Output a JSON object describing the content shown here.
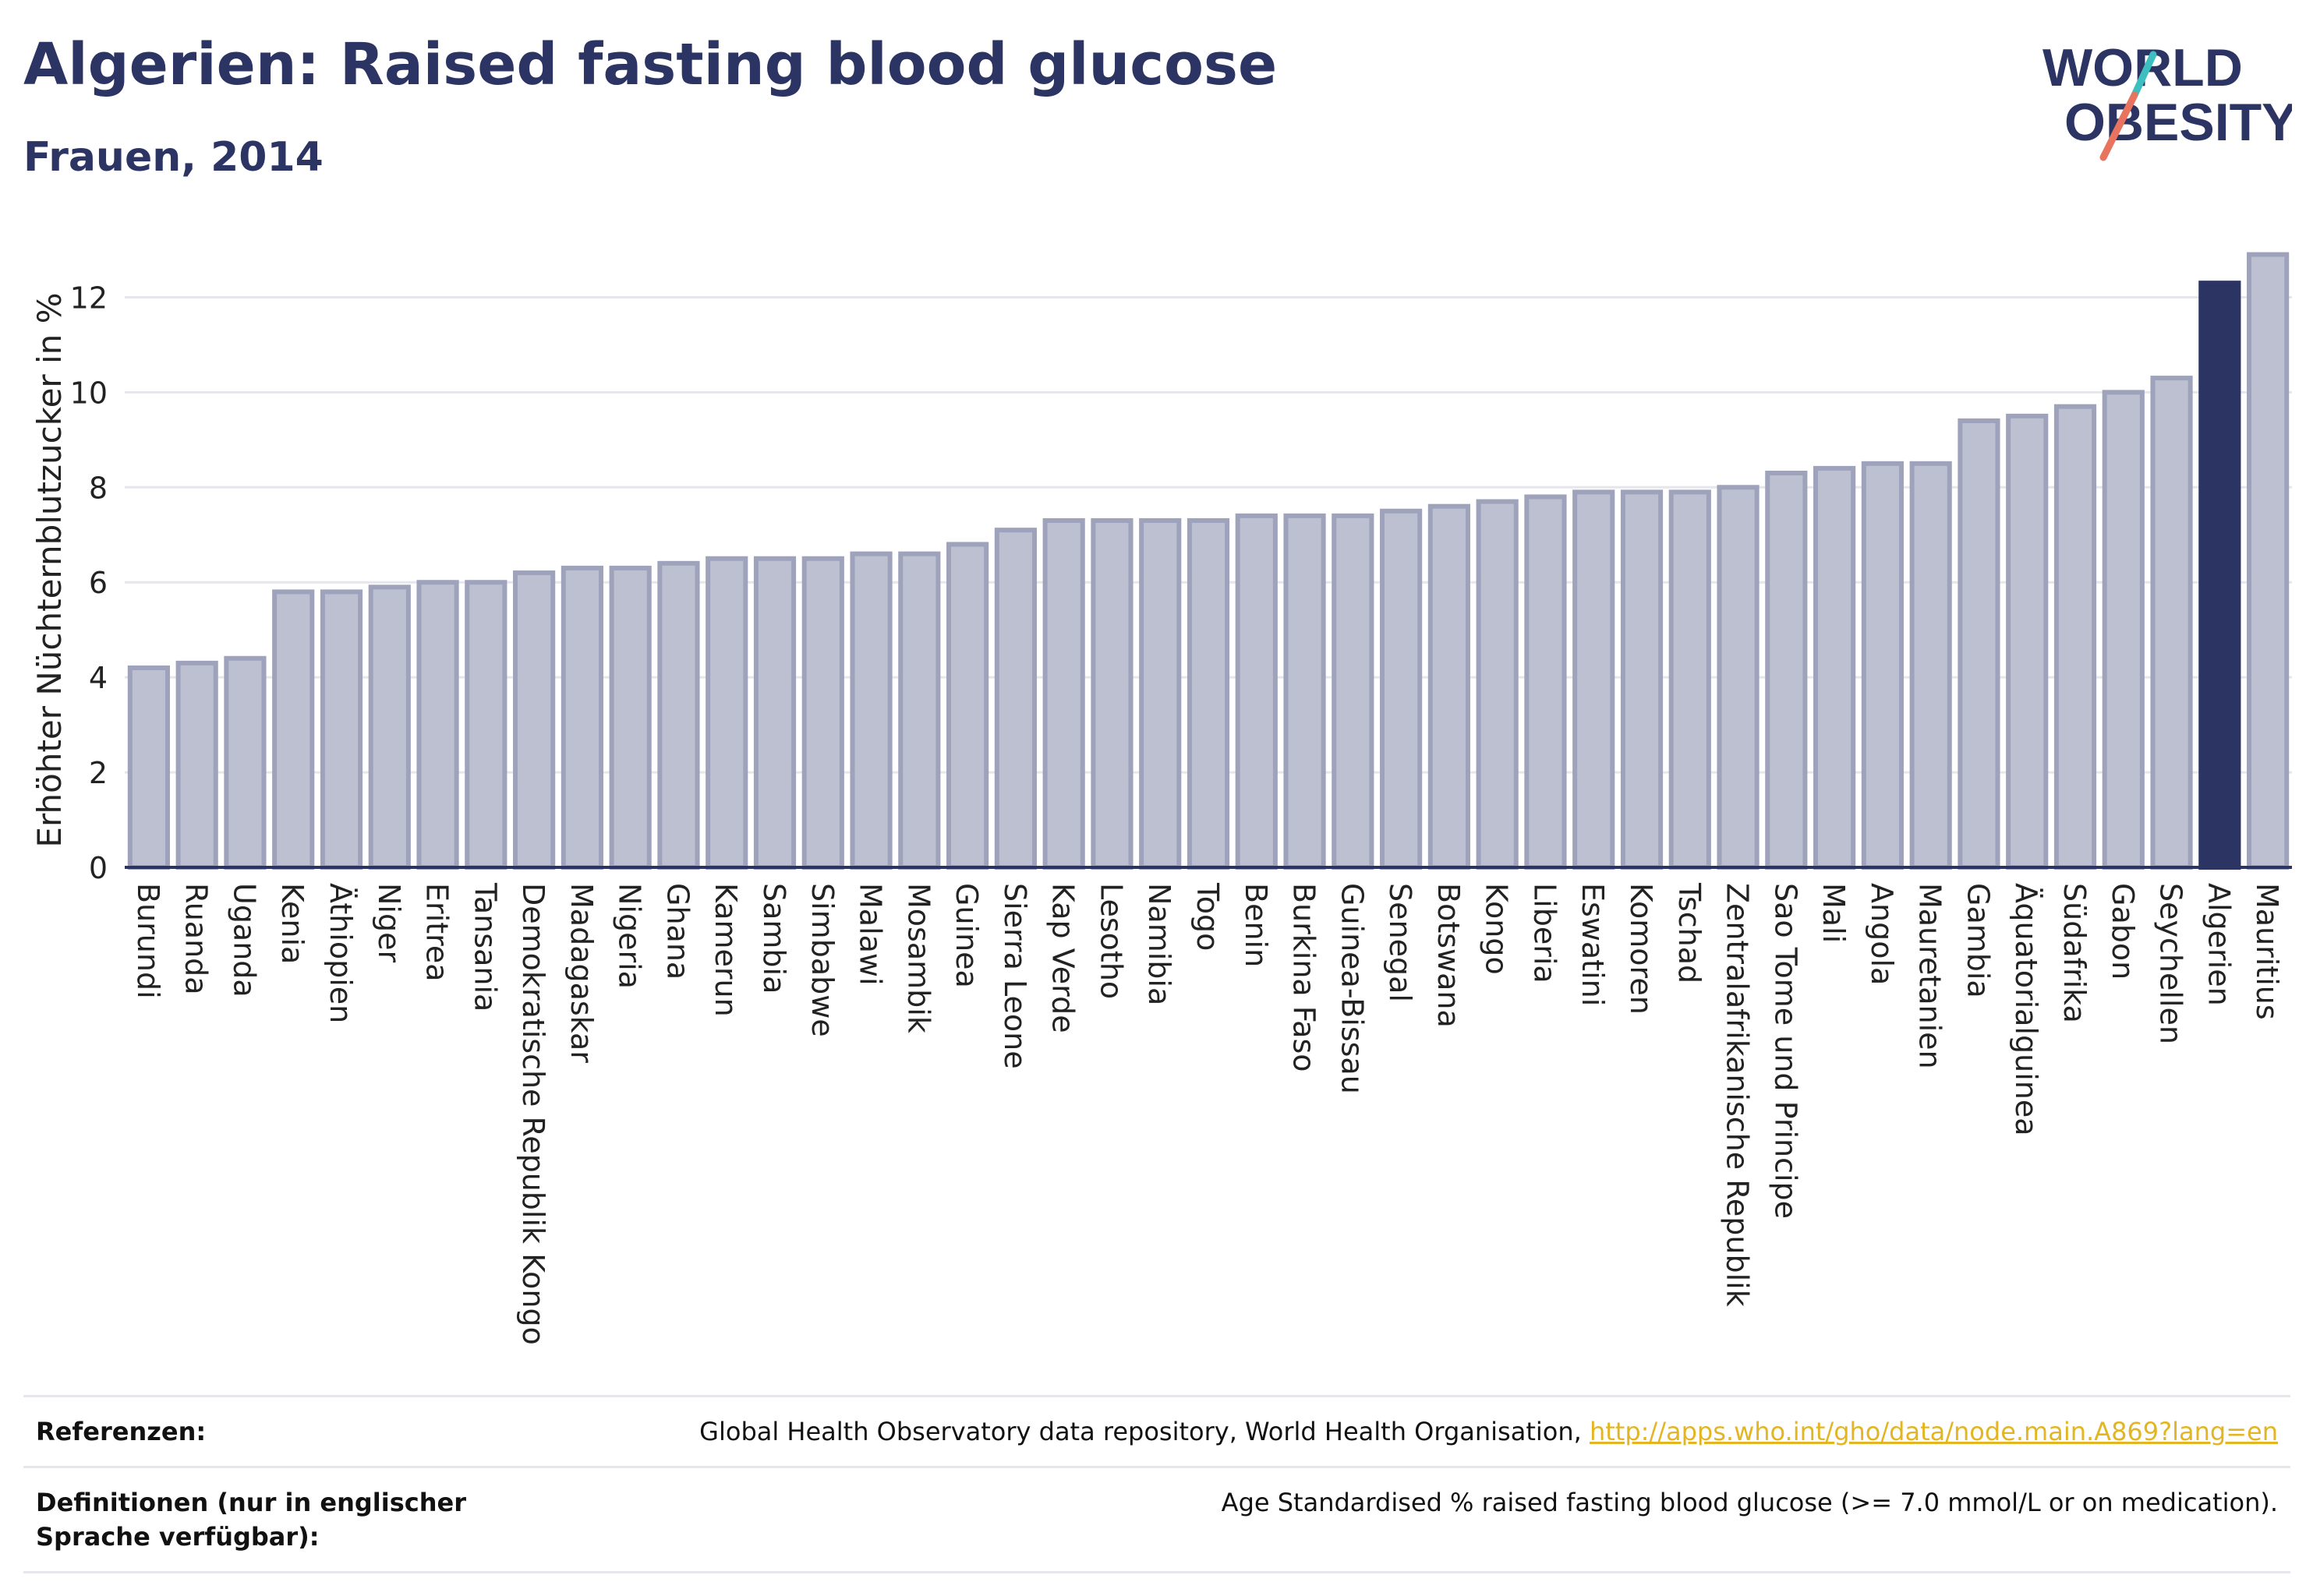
{
  "header": {
    "title": "Algerien: Raised fasting blood glucose",
    "subtitle": "Frauen, 2014"
  },
  "logo": {
    "line1": "WORLD",
    "line2": "OBESITY"
  },
  "colors": {
    "bar": "#bcc0d0",
    "bar_border": "#9ea3bb",
    "highlight": "#2b3463",
    "grid": "#e6e6ec",
    "axis": "#2b3463",
    "logo_text": "#2b3463",
    "logo_teal": "#3dbfc0",
    "logo_coral": "#e8735f"
  },
  "chart_data": {
    "type": "bar",
    "ylabel": "Erhöhter Nüchternblutzucker in %",
    "ylim": [
      0,
      13.5
    ],
    "yticks": [
      0,
      2,
      4,
      6,
      8,
      10,
      12
    ],
    "grid": true,
    "highlight": "Algerien",
    "categories": [
      "Burundi",
      "Ruanda",
      "Uganda",
      "Kenia",
      "Äthiopien",
      "Niger",
      "Eritrea",
      "Tansania",
      "Demokratische Republik Kongo",
      "Madagaskar",
      "Nigeria",
      "Ghana",
      "Kamerun",
      "Sambia",
      "Simbabwe",
      "Malawi",
      "Mosambik",
      "Guinea",
      "Sierra Leone",
      "Kap Verde",
      "Lesotho",
      "Namibia",
      "Togo",
      "Benin",
      "Burkina Faso",
      "Guinea-Bissau",
      "Senegal",
      "Botswana",
      "Kongo",
      "Liberia",
      "Eswatini",
      "Komoren",
      "Tschad",
      "Zentralafrikanische Republik",
      "Sao Tome und Principe",
      "Mali",
      "Angola",
      "Mauretanien",
      "Gambia",
      "Äquatorialguinea",
      "Südafrika",
      "Gabon",
      "Seychellen",
      "Algerien",
      "Mauritius"
    ],
    "values": [
      4.2,
      4.3,
      4.4,
      5.8,
      5.8,
      5.9,
      6.0,
      6.0,
      6.2,
      6.3,
      6.3,
      6.4,
      6.5,
      6.5,
      6.5,
      6.6,
      6.6,
      6.8,
      7.1,
      7.3,
      7.3,
      7.3,
      7.3,
      7.4,
      7.4,
      7.4,
      7.5,
      7.6,
      7.7,
      7.8,
      7.9,
      7.9,
      7.9,
      8.0,
      8.3,
      8.4,
      8.5,
      8.5,
      9.4,
      9.5,
      9.7,
      10.0,
      10.3,
      12.3,
      12.9
    ]
  },
  "references": {
    "label": "Referenzen:",
    "text": "Global Health Observatory data repository, World Health Organisation, ",
    "link": "http://apps.who.int/gho/data/node.main.A869?lang=en"
  },
  "definitions": {
    "label": "Definitionen (nur in englischer Sprache verfügbar):",
    "text": "Age Standardised % raised fasting blood glucose (>= 7.0 mmol/L or on medication)."
  }
}
